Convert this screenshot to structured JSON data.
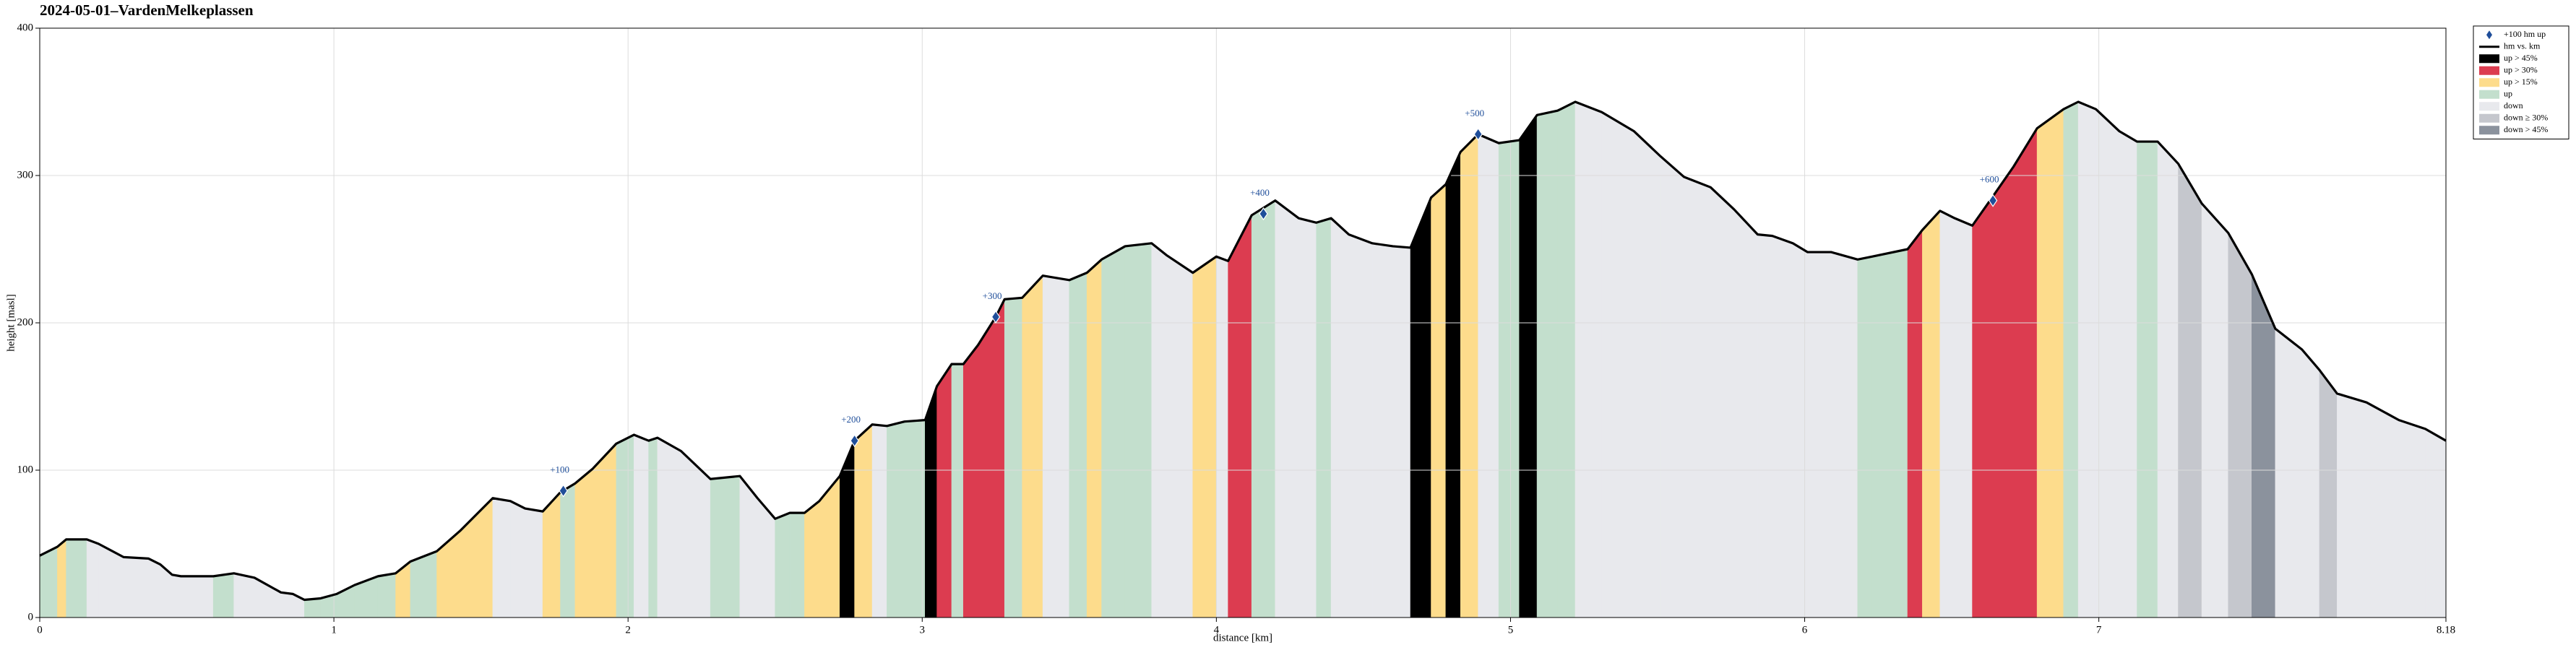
{
  "chart_data": {
    "type": "line",
    "title": "2024-05-01–VardenMelkeplassen",
    "xlabel": "distance [km]",
    "ylabel": "height [masl]",
    "xlim": [
      0,
      8.18
    ],
    "ylim": [
      0,
      400
    ],
    "xticks": [
      0,
      1,
      2,
      3,
      4,
      5,
      6,
      7,
      8.18
    ],
    "yticks": [
      0,
      100,
      200,
      300,
      400
    ],
    "grid": true,
    "legend": "outside right",
    "series": [
      {
        "name": "hm vs. km",
        "color": "#000000",
        "x": [
          0,
          0.06,
          0.09,
          0.16,
          0.2,
          0.285,
          0.37,
          0.41,
          0.45,
          0.48,
          0.59,
          0.66,
          0.73,
          0.82,
          0.86,
          0.9,
          0.955,
          1.01,
          1.07,
          1.15,
          1.21,
          1.26,
          1.35,
          1.43,
          1.49,
          1.54,
          1.6,
          1.65,
          1.71,
          1.77,
          1.82,
          1.88,
          1.96,
          2.02,
          2.07,
          2.1,
          2.18,
          2.28,
          2.38,
          2.44,
          2.5,
          2.55,
          2.6,
          2.65,
          2.72,
          2.77,
          2.83,
          2.88,
          2.94,
          3.01,
          3.05,
          3.1,
          3.14,
          3.19,
          3.25,
          3.28,
          3.34,
          3.41,
          3.5,
          3.56,
          3.61,
          3.69,
          3.78,
          3.83,
          3.92,
          4.0,
          4.04,
          4.12,
          4.2,
          4.28,
          4.34,
          4.39,
          4.45,
          4.53,
          4.6,
          4.66,
          4.73,
          4.78,
          4.83,
          4.89,
          4.96,
          5.03,
          5.09,
          5.16,
          5.22,
          5.31,
          5.42,
          5.51,
          5.59,
          5.68,
          5.76,
          5.84,
          5.89,
          5.96,
          6.01,
          6.09,
          6.18,
          6.23,
          6.35,
          6.4,
          6.46,
          6.51,
          6.57,
          6.63,
          6.71,
          6.79,
          6.88,
          6.93,
          6.99,
          7.07,
          7.13,
          7.2,
          7.27,
          7.35,
          7.44,
          7.52,
          7.6,
          7.69,
          7.75,
          7.81,
          7.91,
          8.02,
          8.11,
          8.18
        ],
        "values": [
          42,
          48,
          53,
          53,
          50,
          41,
          40,
          36,
          29,
          28,
          28,
          30,
          27,
          17,
          16,
          12,
          13,
          16,
          22,
          28,
          30,
          38,
          45,
          59,
          71,
          81,
          79,
          74,
          72,
          85,
          91,
          101,
          118,
          124,
          120,
          122,
          113,
          94,
          96,
          81,
          67,
          71,
          71,
          79,
          96,
          120,
          131,
          130,
          133,
          134,
          157,
          172,
          172,
          185,
          204,
          216,
          217,
          232,
          229,
          234,
          243,
          252,
          254,
          246,
          234,
          245,
          242,
          273,
          283,
          271,
          268,
          271,
          260,
          254,
          252,
          251,
          285,
          294,
          316,
          328,
          322,
          324,
          341,
          344,
          350,
          343,
          330,
          313,
          299,
          292,
          277,
          260,
          259,
          254,
          248,
          248,
          243,
          245,
          250,
          263,
          276,
          271,
          266,
          283,
          306,
          332,
          345,
          350,
          345,
          330,
          323,
          323,
          308,
          281,
          261,
          233,
          196,
          182,
          168,
          152,
          146,
          134,
          128,
          120
        ],
        "classes": [
          3,
          2,
          3,
          4,
          4,
          4,
          4,
          4,
          4,
          4,
          3,
          4,
          4,
          4,
          4,
          3,
          3,
          3,
          3,
          3,
          2,
          3,
          2,
          2,
          2,
          4,
          4,
          4,
          2,
          3,
          2,
          2,
          3,
          4,
          3,
          4,
          4,
          3,
          4,
          4,
          3,
          3,
          2,
          2,
          0,
          2,
          4,
          3,
          3,
          0,
          1,
          3,
          1,
          1,
          1,
          3,
          2,
          4,
          3,
          2,
          3,
          3,
          4,
          4,
          2,
          4,
          1,
          3,
          4,
          4,
          3,
          4,
          4,
          4,
          4,
          0,
          2,
          0,
          2,
          4,
          3,
          0,
          3,
          3,
          4,
          4,
          4,
          4,
          4,
          4,
          4,
          4,
          4,
          4,
          4,
          4,
          3,
          3,
          1,
          2,
          4,
          4,
          1,
          1,
          1,
          2,
          3,
          4,
          4,
          4,
          3,
          4,
          5,
          4,
          5,
          6,
          4,
          4,
          5,
          4,
          4,
          4,
          4,
          null
        ]
      }
    ],
    "bands": [
      {
        "name": "up > 45%",
        "color": "#000000"
      },
      {
        "name": "up > 30%",
        "color": "#dc3c50"
      },
      {
        "name": "up > 15%",
        "color": "#fddc8c"
      },
      {
        "name": "up",
        "color": "#c3dfcd"
      },
      {
        "name": "down",
        "color": "#e8e9ed"
      },
      {
        "name": "down ≥ 30%",
        "color": "#c5c7cd"
      },
      {
        "name": "down > 45%",
        "color": "#8b929d"
      }
    ],
    "markers": {
      "name": "+100 hm up",
      "color": "#1f4e9a",
      "x": [
        1.78,
        2.77,
        3.25,
        4.16,
        4.89,
        6.64
      ],
      "values": [
        86,
        120,
        204,
        274,
        328,
        283
      ],
      "labels": [
        "+100",
        "+200",
        "+300",
        "+400",
        "+500",
        "+600"
      ]
    }
  }
}
